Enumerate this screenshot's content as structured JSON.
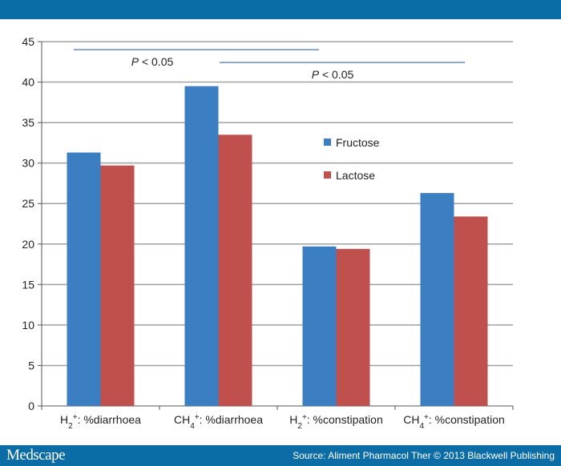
{
  "header": {
    "color": "#0c6ca6"
  },
  "footer": {
    "brand": "Medscape",
    "source": "Source: Aliment Pharmacol Ther © 2013 Blackwell Publishing"
  },
  "colors": {
    "fructose": "#3b7ec2",
    "lactose": "#c0504d",
    "annotation_line": "#8eaad4",
    "grid": "#a0a0a0"
  },
  "annotations": [
    {
      "label": "P < 0.05",
      "italic_part": "P",
      "rest": " < 0.05",
      "from_category": 0,
      "to_category": 1
    },
    {
      "label": "P < 0.05",
      "italic_part": "P",
      "rest": " < 0.05",
      "from_category": 1,
      "to_category": 3
    }
  ],
  "chart_data": {
    "type": "bar",
    "title": "",
    "xlabel": "",
    "ylabel": "",
    "categories": [
      "H2+: %diarrhoea",
      "CH4+: %diarrhoea",
      "H2+: %constipation",
      "CH4+: %constipation"
    ],
    "category_labels": [
      {
        "base": "H",
        "sub": "2",
        "sup": "+",
        "rest": ": %diarrhoea"
      },
      {
        "base": "CH",
        "sub": "4",
        "sup": "+",
        "rest": ": %diarrhoea"
      },
      {
        "base": "H",
        "sub": "2",
        "sup": "+",
        "rest": ": %constipation"
      },
      {
        "base": "CH",
        "sub": "4",
        "sup": "+",
        "rest": ": %constipation"
      }
    ],
    "series": [
      {
        "name": "Fructose",
        "values": [
          31.3,
          39.5,
          19.7,
          26.3
        ]
      },
      {
        "name": "Lactose",
        "values": [
          29.7,
          33.5,
          19.4,
          23.4
        ]
      }
    ],
    "ylim": [
      0,
      45
    ],
    "yticks": [
      "0",
      "5",
      "10",
      "15",
      "20",
      "25",
      "30",
      "35",
      "40",
      "45"
    ],
    "grid": true,
    "legend_position": "inside-right-middle"
  }
}
